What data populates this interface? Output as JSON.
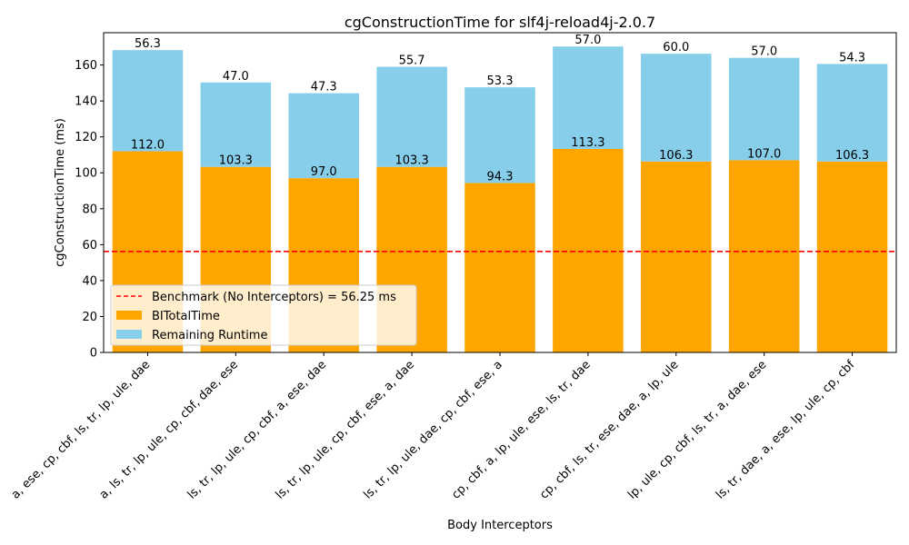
{
  "chart_data": {
    "type": "bar",
    "stacked": true,
    "title": "cgConstructionTime for slf4j-reload4j-2.0.7",
    "xlabel": "Body Interceptors",
    "ylabel": "cgConstructionTime (ms)",
    "ylim": [
      0,
      178
    ],
    "yticks": [
      0,
      20,
      40,
      60,
      80,
      100,
      120,
      140,
      160
    ],
    "grid": false,
    "legend_position": "lower-left",
    "categories": [
      "a, ese, cp, cbf, ls, tr, lp, ule, dae",
      "a, ls, tr, lp, ule, cp, cbf, dae, ese",
      "ls, tr, lp, ule, cp, cbf, a, ese, dae",
      "ls, tr, lp, ule, cp, cbf, ese, a, dae",
      "ls, tr, lp, ule, dae, cp, cbf, ese, a",
      "cp, cbf, a, lp, ule, ese, ls, tr, dae",
      "cp, cbf, ls, tr, ese, dae, a, lp, ule",
      "lp, ule, cp, cbf, ls, tr, a, dae, ese",
      "ls, tr, dae, a, ese, lp, ule, cp, cbf"
    ],
    "series": [
      {
        "name": "BITotalTime",
        "color": "#ffa500",
        "values": [
          112.0,
          103.3,
          97.0,
          103.3,
          94.3,
          113.3,
          106.3,
          107.0,
          106.3
        ],
        "labels": [
          "112.0",
          "103.3",
          "97.0",
          "103.3",
          "94.3",
          "113.3",
          "106.3",
          "107.0",
          "106.3"
        ]
      },
      {
        "name": "Remaining Runtime",
        "color": "#87ceeb",
        "values": [
          56.3,
          47.0,
          47.3,
          55.7,
          53.3,
          57.0,
          60.0,
          57.0,
          54.3
        ],
        "labels": [
          "56.3",
          "47.0",
          "47.3",
          "55.7",
          "53.3",
          "57.0",
          "60.0",
          "57.0",
          "54.3"
        ]
      }
    ],
    "benchmark": {
      "label": "Benchmark (No Interceptors) = 56.25 ms",
      "value": 56.25,
      "color": "#ff0000"
    }
  }
}
